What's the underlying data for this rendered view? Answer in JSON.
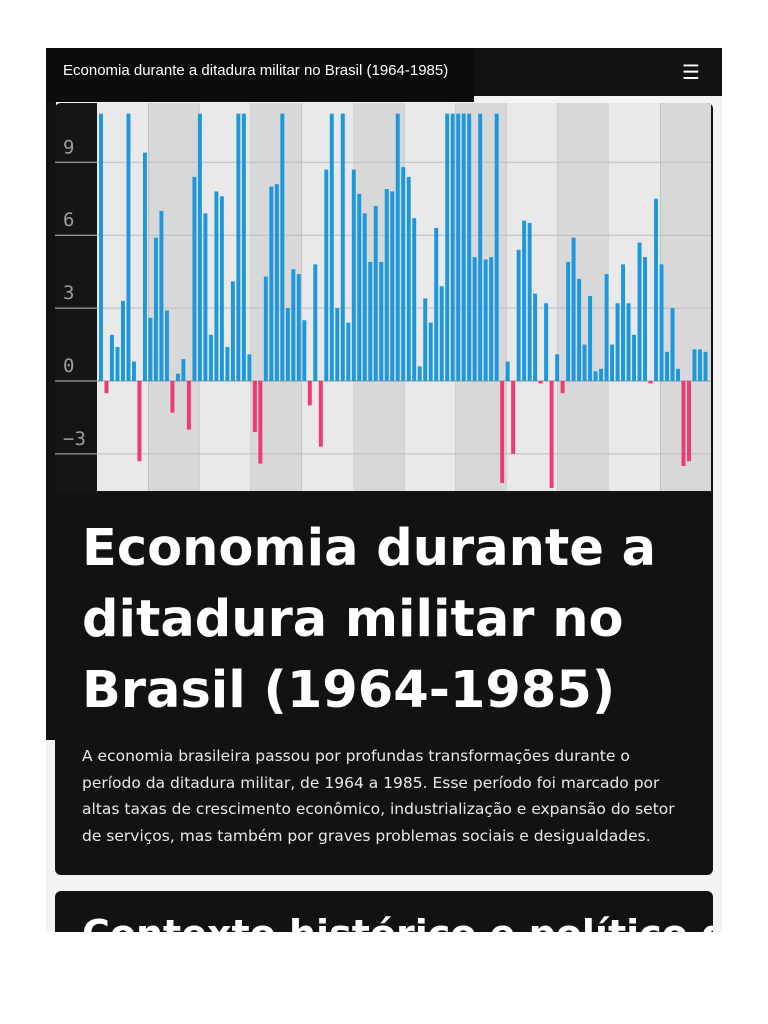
{
  "header": {
    "title": "Economia durante a ditadura militar no Brasil (1964-1985)",
    "menu_icon": "hamburger-menu-icon",
    "menu_glyph": "☰"
  },
  "hero": {
    "title": "Economia durante a ditadura militar no Brasil (1964-1985)",
    "text": "A economia brasileira passou por profundas transformações durante o período da ditadura militar, de 1964 a 1985. Esse período foi marcado por altas taxas de crescimento econômico, industrialização e expansão do setor de serviços, mas também por graves problemas sociais e desigualdades."
  },
  "section2": {
    "heading": "Contexto histórico e político da"
  },
  "chart_data": {
    "type": "bar",
    "title": "",
    "xlabel": "",
    "ylabel": "",
    "ylim": [
      -5.3,
      10.5
    ],
    "yticks": [
      9,
      6,
      3,
      0,
      -3
    ],
    "ytick_labels": [
      "9",
      "6",
      "3",
      "0",
      "−3"
    ],
    "grid": true,
    "colors": {
      "positive": "#1e98dc",
      "negative": "#ee3a6e",
      "band_a": "#e9e9e9",
      "band_b": "#d8d8d8"
    },
    "values": [
      11,
      -0.5,
      1.9,
      1.4,
      3.3,
      11,
      0.8,
      -3.3,
      9.4,
      2.6,
      5.9,
      7,
      2.9,
      -1.3,
      0.3,
      0.9,
      -2,
      8.4,
      11,
      6.9,
      1.9,
      7.8,
      7.6,
      1.4,
      4.1,
      11,
      11,
      1.1,
      -2.1,
      -3.4,
      4.3,
      8,
      8.1,
      11,
      3,
      4.6,
      4.4,
      2.5,
      -1,
      4.8,
      -2.7,
      8.7,
      11,
      3,
      11,
      2.4,
      8.7,
      7.7,
      6.9,
      4.9,
      7.2,
      4.9,
      7.9,
      7.8,
      11,
      8.8,
      8.4,
      6.7,
      0.6,
      3.4,
      2.4,
      6.3,
      3.9,
      11,
      11,
      11,
      11,
      11,
      5.1,
      11,
      5,
      5.1,
      11,
      -4.2,
      0.8,
      -3,
      5.4,
      6.6,
      6.5,
      3.6,
      -0.1,
      3.2,
      -4.4,
      1.1,
      -0.5,
      4.9,
      5.9,
      4.2,
      1.5,
      3.5,
      0.4,
      0.5,
      4.4,
      1.5,
      3.2,
      4.8,
      3.2,
      1.9,
      5.7,
      5.1,
      -0.1,
      7.5,
      4.8,
      1.2,
      3,
      0.5,
      -3.5,
      -3.3,
      1.3,
      1.3,
      1.2
    ]
  }
}
